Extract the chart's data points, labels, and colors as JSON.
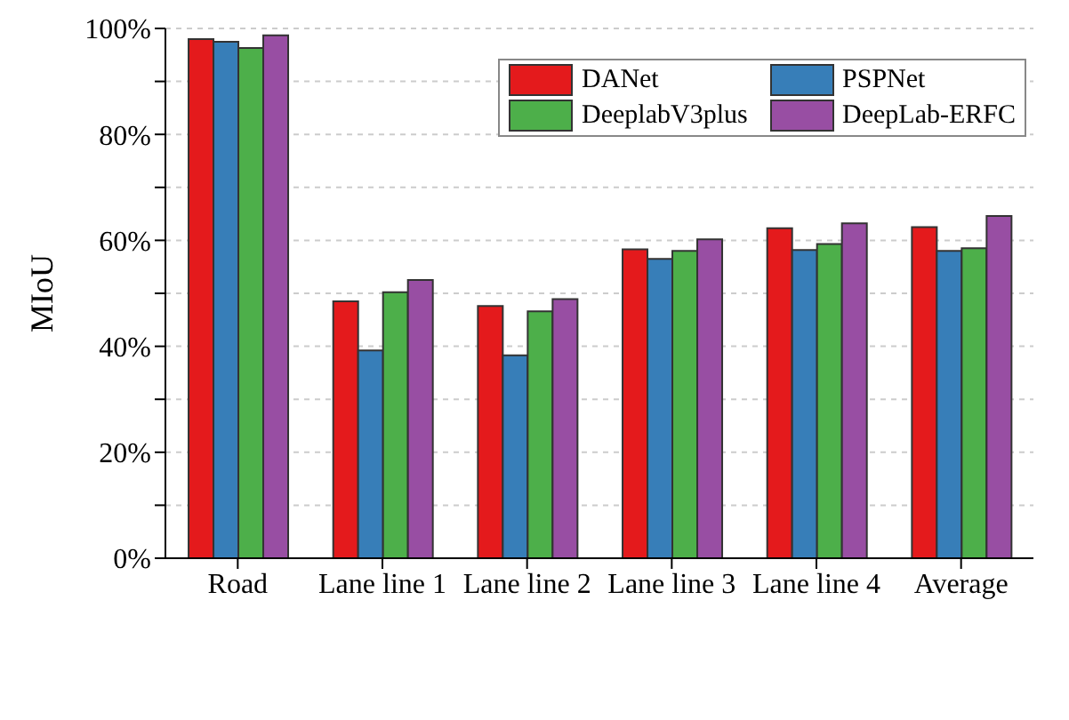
{
  "chart_data": {
    "type": "bar",
    "ylabel": "MIoU",
    "categories": [
      "Road",
      "Lane line 1",
      "Lane line 2",
      "Lane line 3",
      "Lane line 4",
      "Average"
    ],
    "series": [
      {
        "name": "DANet",
        "color": "#e41a1c",
        "values": [
          98,
          48.5,
          47.6,
          58.3,
          62.3,
          62.5
        ]
      },
      {
        "name": "PSPNet",
        "color": "#377eb8",
        "values": [
          97.5,
          39.2,
          38.3,
          56.5,
          58.2,
          58
        ]
      },
      {
        "name": "DeeplabV3plus",
        "color": "#4daf4a",
        "values": [
          96.3,
          50.2,
          46.6,
          58,
          59.3,
          58.5
        ]
      },
      {
        "name": "DeepLab-ERFC",
        "color": "#984ea3",
        "values": [
          98.7,
          52.5,
          48.9,
          60.2,
          63.2,
          64.6
        ]
      }
    ],
    "ylim": [
      0,
      100
    ],
    "yticks": [
      {
        "value": 0,
        "label": "0%"
      },
      {
        "value": 10,
        "label": null
      },
      {
        "value": 20,
        "label": "20%"
      },
      {
        "value": 30,
        "label": null
      },
      {
        "value": 40,
        "label": "40%"
      },
      {
        "value": 50,
        "label": null
      },
      {
        "value": 60,
        "label": "60%"
      },
      {
        "value": 70,
        "label": null
      },
      {
        "value": 80,
        "label": "80%"
      },
      {
        "value": 90,
        "label": null
      },
      {
        "value": 100,
        "label": "100%"
      }
    ],
    "grid": "y",
    "legend": "top right"
  }
}
